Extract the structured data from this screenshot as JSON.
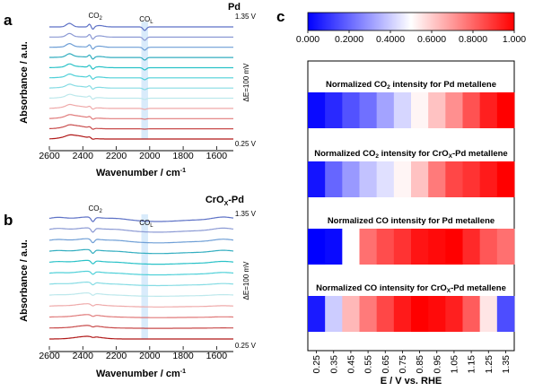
{
  "chart_data": [
    {
      "type": "line",
      "panel_label": "a",
      "title": "Pd",
      "xlabel": "Wavenumber / cm",
      "xlabel_superscript": "-1",
      "ylabel": "Absorbance / a.u.",
      "x_ticks": [
        "2600",
        "2400",
        "2200",
        "2000",
        "1800",
        "1600"
      ],
      "xlim": [
        2600,
        1500
      ],
      "annotations": {
        "co2": {
          "base": "CO",
          "sub": "2",
          "x": 2345
        },
        "col": {
          "base": "CO",
          "sub": "L",
          "x": 2030
        },
        "top_potential": "1.35 V",
        "bottom_potential": "0.25 V",
        "step": "ΔE=100 mV"
      },
      "highlight_band": [
        2050,
        2010
      ],
      "series_count": 12,
      "potentials": [
        0.25,
        0.35,
        0.45,
        0.55,
        0.65,
        0.75,
        0.85,
        0.95,
        1.05,
        1.15,
        1.25,
        1.35
      ],
      "colors": [
        "#b01818",
        "#c84a4a",
        "#e07a7a",
        "#efaaaa",
        "#bde8ec",
        "#86dce4",
        "#4fd0d8",
        "#2ac2c8",
        "#33aec0",
        "#6f9fd6",
        "#8c9ad4",
        "#5e72c6"
      ]
    },
    {
      "type": "line",
      "panel_label": "b",
      "title": "CrOx-Pd",
      "title_parts": {
        "base": "CrO",
        "sub": "X",
        "rest": "-Pd"
      },
      "xlabel": "Wavenumber / cm",
      "xlabel_superscript": "-1",
      "ylabel": "Absorbance / a.u.",
      "x_ticks": [
        "2600",
        "2400",
        "2200",
        "2000",
        "1800",
        "1600"
      ],
      "xlim": [
        2600,
        1500
      ],
      "annotations": {
        "co2": {
          "base": "CO",
          "sub": "2",
          "x": 2345
        },
        "col": {
          "base": "CO",
          "sub": "L",
          "x": 2030
        },
        "top_potential": "1.35 V",
        "bottom_potential": "0.25 V",
        "step": "ΔE=100 mV"
      },
      "highlight_band": [
        2050,
        2010
      ],
      "series_count": 12,
      "potentials": [
        0.25,
        0.35,
        0.45,
        0.55,
        0.65,
        0.75,
        0.85,
        0.95,
        1.05,
        1.15,
        1.25,
        1.35
      ],
      "colors": [
        "#b01818",
        "#c84a4a",
        "#e07a7a",
        "#efaaaa",
        "#bde8ec",
        "#86dce4",
        "#4fd0d8",
        "#2ac2c8",
        "#33aec0",
        "#6f9fd6",
        "#8c9ad4",
        "#5e72c6"
      ]
    },
    {
      "type": "heatmap",
      "panel_label": "c",
      "colorbar": {
        "ticks": [
          "0.000",
          "0.2000",
          "0.4000",
          "0.6000",
          "0.8000",
          "1.000"
        ],
        "range": [
          0,
          1
        ],
        "colors": [
          "#0000ff",
          "#ffffff",
          "#ff0000"
        ]
      },
      "xlabel": "E / V vs. RHE",
      "x_ticks": [
        "0.25",
        "0.35",
        "0.45",
        "0.55",
        "0.65",
        "0.75",
        "0.85",
        "0.95",
        "1.05",
        "1.15",
        "1.25",
        "1.35"
      ],
      "rows": [
        {
          "title": "Normalized CO",
          "sub": "2",
          "rest": " intensity for Pd metallene",
          "values": [
            0.02,
            0.08,
            0.16,
            0.22,
            0.32,
            0.42,
            0.52,
            0.62,
            0.72,
            0.84,
            0.94,
            1.0
          ]
        },
        {
          "title": "Normalized CO",
          "sub": "2",
          "rest": " intensity for CrO",
          "sub2": "X",
          "rest2": "-Pd metallene",
          "values": [
            0.04,
            0.2,
            0.3,
            0.38,
            0.44,
            0.52,
            0.62,
            0.76,
            0.86,
            0.9,
            0.95,
            1.0
          ]
        },
        {
          "title": "Normalized CO intensity for Pd metallene",
          "values": [
            0.0,
            0.02,
            0.5,
            0.78,
            0.85,
            0.9,
            0.96,
            0.98,
            1.0,
            0.92,
            0.83,
            0.78
          ]
        },
        {
          "title": "Normalized CO intensity for CrO",
          "sub": "X",
          "rest": "-Pd metallene",
          "values": [
            0.05,
            0.4,
            0.64,
            0.76,
            0.86,
            0.95,
            1.0,
            0.98,
            0.94,
            0.82,
            0.55,
            0.15
          ]
        }
      ]
    }
  ]
}
